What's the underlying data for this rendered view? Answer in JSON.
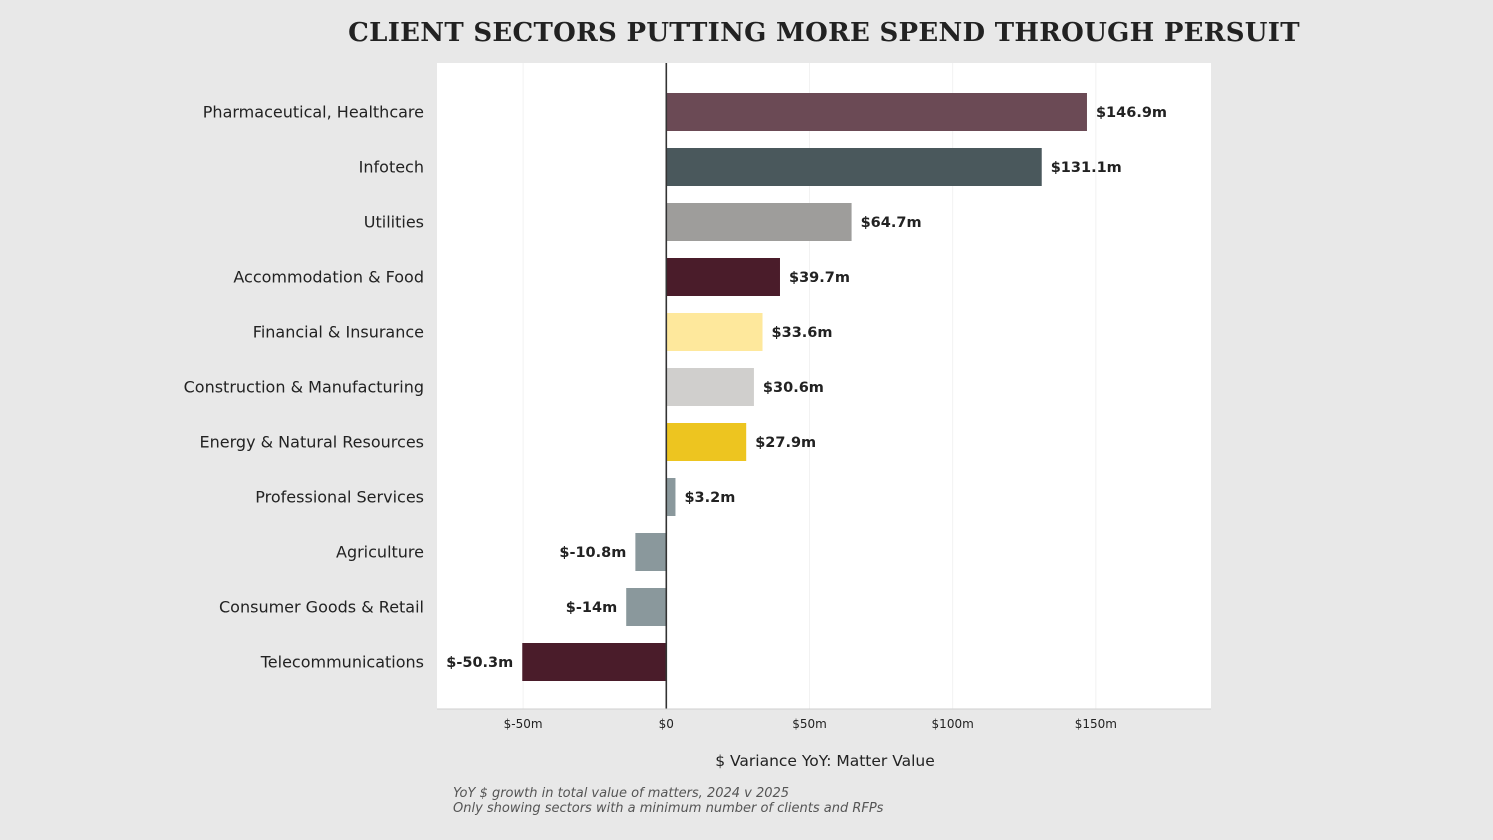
{
  "chart_data": {
    "type": "bar",
    "orientation": "horizontal",
    "title": "CLIENT SECTORS PUTTING MORE SPEND THROUGH PERSUIT",
    "xlabel": "$ Variance YoY: Matter Value",
    "ylabel": "",
    "xlim": [
      -80,
      190
    ],
    "xticks": [
      {
        "value": -50,
        "label": "$-50m"
      },
      {
        "value": 0,
        "label": "$0"
      },
      {
        "value": 50,
        "label": "$50m"
      },
      {
        "value": 100,
        "label": "$100m"
      },
      {
        "value": 150,
        "label": "$150m"
      }
    ],
    "categories": [
      "Pharmaceutical, Healthcare",
      "Infotech",
      "Utilities",
      "Accommodation & Food",
      "Financial & Insurance",
      "Construction & Manufacturing",
      "Energy & Natural Resources",
      "Professional Services",
      "Agriculture",
      "Consumer Goods & Retail",
      "Telecommunications"
    ],
    "values": [
      146.9,
      131.1,
      64.7,
      39.7,
      33.6,
      30.6,
      27.9,
      3.2,
      -10.8,
      -14,
      -50.3
    ],
    "value_labels": [
      "$146.9m",
      "$131.1m",
      "$64.7m",
      "$39.7m",
      "$33.6m",
      "$30.6m",
      "$27.9m",
      "$3.2m",
      "$-10.8m",
      "$-14m",
      "$-50.3m"
    ],
    "colors": [
      "#6b4a55",
      "#4a585c",
      "#9e9d9b",
      "#4a1c2a",
      "#fee89c",
      "#d0cfcd",
      "#edc520",
      "#8a989c",
      "#8a989c",
      "#8a989c",
      "#4a1c2a"
    ],
    "grid": true
  },
  "footnote": {
    "line1": "YoY $ growth in total value of matters, 2024 v 2025",
    "line2": "Only showing sectors with a minimum number of clients and RFPs"
  }
}
